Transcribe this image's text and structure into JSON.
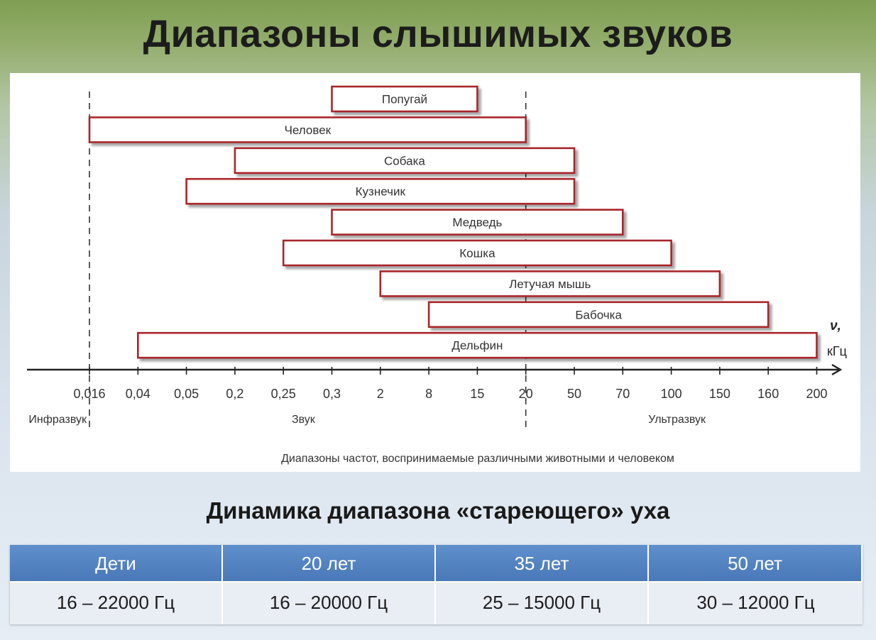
{
  "page": {
    "title": "Диапазоны слышимых звуков",
    "subtitle": "Динамика диапазона «стареющего» уха"
  },
  "chart_data": {
    "type": "bar",
    "orientation": "horizontal-range",
    "caption": "Диапазоны частот, воспринимаемые различными животными и человеком",
    "axis_label_symbol": "ν,",
    "axis_unit": "кГц",
    "ticks": [
      "0,016",
      "0,04",
      "0,05",
      "0,2",
      "0,25",
      "0,3",
      "2",
      "8",
      "15",
      "20",
      "50",
      "70",
      "100",
      "150",
      "160",
      "200"
    ],
    "zones": [
      {
        "label": "Инфразвук",
        "to": "0,016"
      },
      {
        "label": "Звук",
        "from": "0,016",
        "to": "20"
      },
      {
        "label": "Ультразвук",
        "from": "20"
      }
    ],
    "boundaries": [
      "0,016",
      "20"
    ],
    "series": [
      {
        "label": "Попугай",
        "from": "0,3",
        "to": "15"
      },
      {
        "label": "Человек",
        "from": "0,016",
        "to": "20"
      },
      {
        "label": "Собака",
        "from": "0,2",
        "to": "50"
      },
      {
        "label": "Кузнечик",
        "from": "0,05",
        "to": "50"
      },
      {
        "label": "Медведь",
        "from": "0,3",
        "to": "70"
      },
      {
        "label": "Кошка",
        "from": "0,25",
        "to": "100"
      },
      {
        "label": "Летучая мышь",
        "from": "2",
        "to": "150"
      },
      {
        "label": "Бабочка",
        "from": "8",
        "to": "160"
      },
      {
        "label": "Дельфин",
        "from": "0,04",
        "to": "200"
      }
    ],
    "bar_border_color": "#a8252c"
  },
  "age_table": {
    "headers": [
      "Дети",
      "20 лет",
      "35 лет",
      "50 лет"
    ],
    "values": [
      "16 – 22000 Гц",
      "16 – 20000 Гц",
      "25 – 15000 Гц",
      "30 – 12000 Гц"
    ],
    "header_color": "#4f7fc0"
  }
}
